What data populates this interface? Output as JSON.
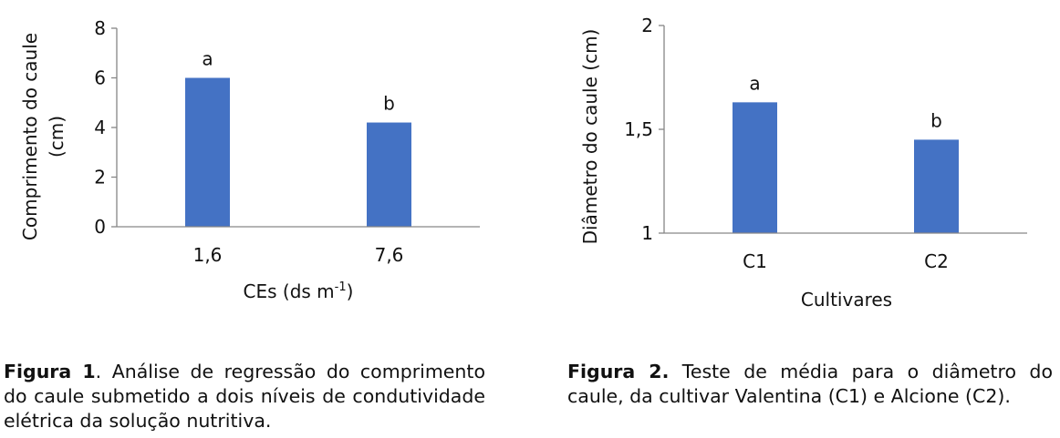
{
  "chart_data": [
    {
      "type": "bar",
      "categories": [
        "1,6",
        "7,6"
      ],
      "values": [
        6.0,
        4.2
      ],
      "bar_labels": [
        "a",
        "b"
      ],
      "ylim": [
        0,
        8
      ],
      "yticks": [
        "0",
        "2",
        "4",
        "6",
        "8"
      ],
      "ytick_values": [
        0,
        2,
        4,
        6,
        8
      ],
      "ylabel_line1": "Comprimento do caule",
      "ylabel_line2": "(cm)",
      "xlabel": "CEs (ds m",
      "xlabel_sup": "-1",
      "xlabel_end": ")",
      "bar_color": "#4472c4",
      "grid": false
    },
    {
      "type": "bar",
      "categories": [
        "C1",
        "C2"
      ],
      "values": [
        1.63,
        1.45
      ],
      "bar_labels": [
        "a",
        "b"
      ],
      "ylim": [
        1,
        2
      ],
      "yticks": [
        "1",
        "1,5",
        "2"
      ],
      "ytick_values": [
        1,
        1.5,
        2
      ],
      "ylabel": "Diâmetro do caule (cm)",
      "xlabel": "Cultivares",
      "bar_color": "#4472c4",
      "grid": false
    }
  ],
  "captions": [
    {
      "label": "Figura 1",
      "text": ". Análise de regressão do comprimento do caule submetido a dois níveis de condutividade elétrica da solução nutritiva."
    },
    {
      "label": "Figura 2.",
      "text": " Teste de média para o diâmetro do caule, da cultivar Valentina (C1) e Alcione (C2)."
    }
  ]
}
